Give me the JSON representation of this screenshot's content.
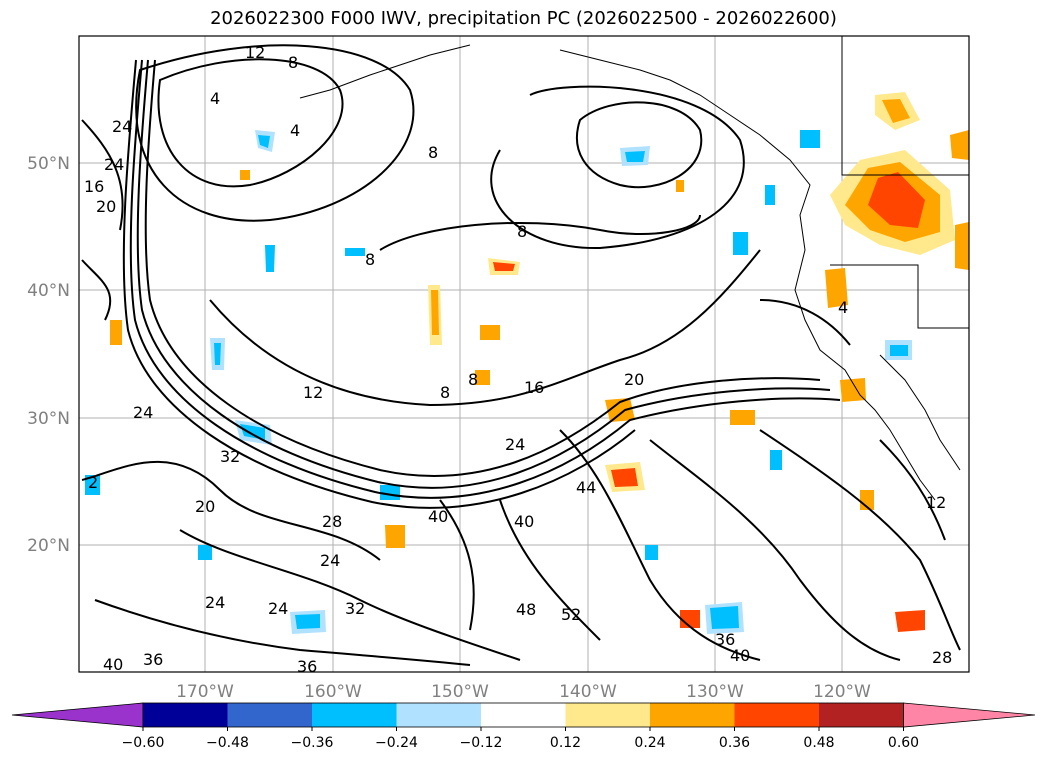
{
  "title": "2026022300 F000 IWV, precipitation PC (2026022500 - 2026022600)",
  "map": {
    "lon_labels": [
      "170°W",
      "160°W",
      "150°W",
      "140°W",
      "130°W",
      "120°W"
    ],
    "lat_labels": [
      "50°N",
      "40°N",
      "30°N",
      "20°N"
    ],
    "contour_labels": [
      "12",
      "8",
      "4",
      "4",
      "8",
      "24",
      "24",
      "16",
      "20",
      "8",
      "8",
      "12",
      "8",
      "8",
      "16",
      "20",
      "24",
      "24",
      "32",
      "20",
      "28",
      "40",
      "40",
      "44",
      "48",
      "52",
      "36",
      "40",
      "28",
      "12",
      "24",
      "24",
      "32",
      "40",
      "36",
      "36",
      "24",
      "2",
      "4"
    ]
  },
  "colorbar": {
    "tick_labels": [
      "−0.60",
      "−0.48",
      "−0.36",
      "−0.24",
      "−0.12",
      "0.12",
      "0.24",
      "0.36",
      "0.48",
      "0.60"
    ],
    "colors": [
      "#9933cc",
      "#000099",
      "#3366cc",
      "#00bfff",
      "#b0e2ff",
      "#ffffff",
      "#ffe98c",
      "#ffa500",
      "#ff4500",
      "#b22222",
      "#ff85a6"
    ]
  }
}
